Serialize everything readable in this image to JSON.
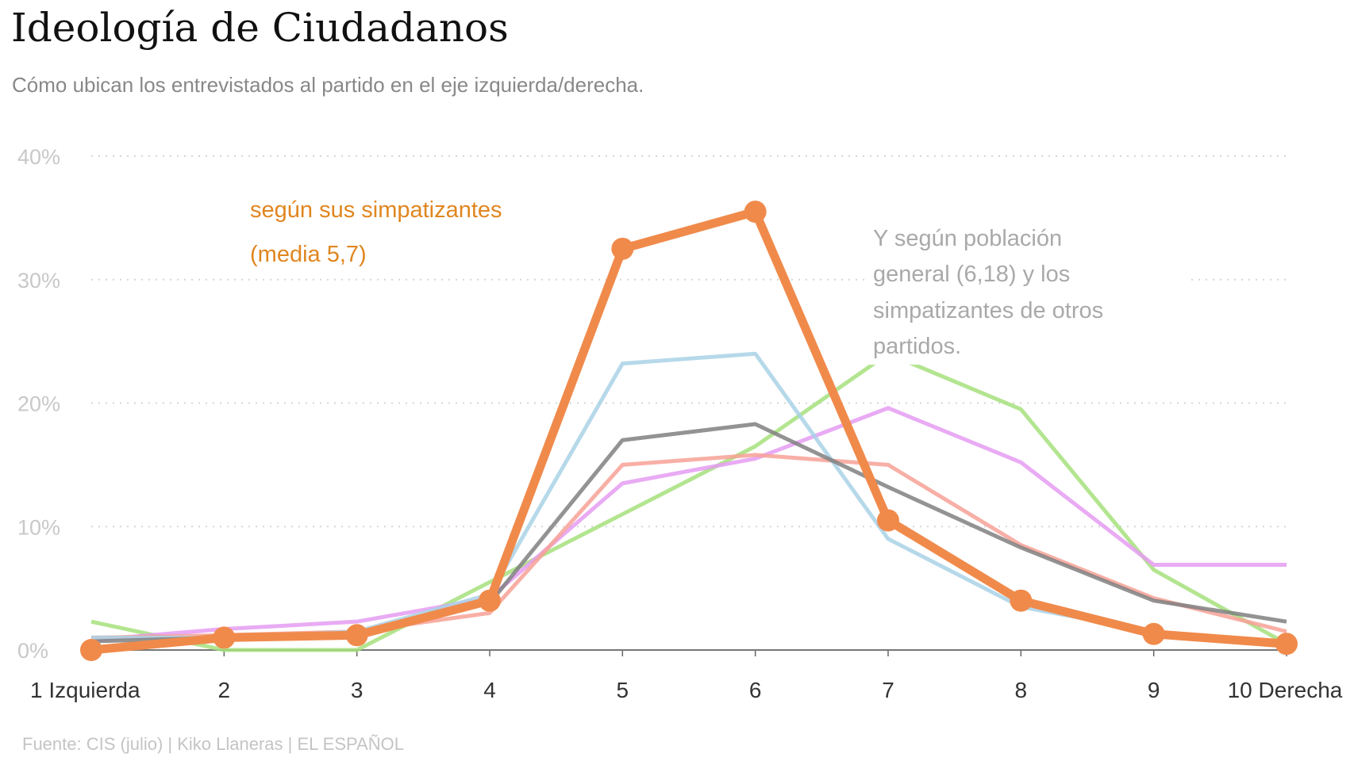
{
  "title": "Ideología de Ciudadanos",
  "subtitle": "Cómo ubican los entrevistados al partido en el eje izquierda/derecha.",
  "source": "Fuente: CIS (julio)  |  Kiko Llaneras  |  EL ESPAÑOL",
  "chart_data": {
    "type": "line",
    "title": "Ideología de Ciudadanos",
    "subtitle": "Cómo ubican los entrevistados al partido en el eje izquierda/derecha.",
    "categories": [
      "1 Izquierda",
      "2",
      "3",
      "4",
      "5",
      "6",
      "7",
      "8",
      "9",
      "10 Derecha"
    ],
    "ylim": [
      0,
      40
    ],
    "yticks": [
      0,
      10,
      20,
      30,
      40
    ],
    "ytick_labels": [
      "0%",
      "10%",
      "20%",
      "30%",
      "40%"
    ],
    "grid": "horizontal dotted",
    "annotations": {
      "orange_line1": "según sus simpatizantes",
      "orange_line2": "(media 5,7)",
      "gray_lines": [
        "Y según población",
        "general (6,18) y los",
        "simpatizantes de otros",
        "partidos."
      ]
    },
    "series": [
      {
        "color": "#a6e07d",
        "values": [
          2.3,
          0,
          0,
          5.5,
          11,
          16.5,
          24,
          19.5,
          6.5,
          0.5
        ]
      },
      {
        "color": "#e59cf2",
        "values": [
          0.8,
          1.7,
          2.3,
          4.2,
          13.5,
          15.5,
          19.6,
          15.2,
          6.9,
          6.9
        ]
      },
      {
        "color": "#f7a196",
        "values": [
          1,
          1.2,
          1.5,
          3,
          15,
          15.8,
          15,
          8.5,
          4.2,
          1.5
        ]
      },
      {
        "color": "#a9d2e6",
        "values": [
          1,
          1,
          1.5,
          4.5,
          23.2,
          24,
          9,
          3.5,
          1.5,
          0.5
        ]
      },
      {
        "color": "#808080",
        "values": [
          0.7,
          1,
          1.3,
          3.8,
          17,
          18.3,
          13.2,
          8.3,
          4,
          2.3
        ]
      },
      {
        "color": "#f08a4b",
        "highlight": true,
        "markers": true,
        "values": [
          0,
          1,
          1.2,
          4,
          32.5,
          35.5,
          10.5,
          4,
          1.3,
          0.5
        ]
      }
    ]
  }
}
